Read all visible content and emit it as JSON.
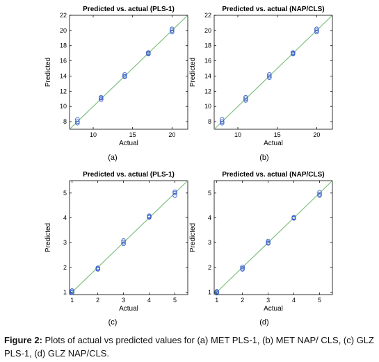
{
  "figure": {
    "caption_label": "Figure 2:",
    "caption_text": " Plots of actual vs predicted values for (a) MET PLS-1, (b) MET NAP/ CLS, (c) GLZ PLS-1, (d) GLZ NAP/CLS."
  },
  "colors": {
    "fit_line": "#7fbf7f",
    "marker": "#3a5fcd",
    "axes": "#000000"
  },
  "panels": [
    {
      "panel_label": "(a)"
    },
    {
      "panel_label": "(b)"
    },
    {
      "panel_label": "(c)"
    },
    {
      "panel_label": "(d)"
    }
  ],
  "chart_data": [
    {
      "type": "scatter",
      "title": "Predicted vs. actual (PLS-1)",
      "xlabel": "Actual",
      "ylabel": "Predicted",
      "xlim": [
        7,
        22
      ],
      "ylim": [
        7,
        22
      ],
      "xticks": [
        10,
        15,
        20
      ],
      "yticks": [
        8,
        10,
        12,
        14,
        16,
        18,
        20,
        22
      ],
      "grid": false,
      "reference_line": [
        [
          7,
          7
        ],
        [
          22,
          22
        ]
      ],
      "x": [
        8,
        8,
        8,
        11,
        11,
        11,
        14,
        14,
        14,
        17,
        17,
        17,
        20,
        20,
        20
      ],
      "y": [
        7.8,
        8.0,
        8.3,
        10.9,
        11.1,
        11.2,
        13.9,
        14.0,
        14.2,
        16.9,
        17.0,
        17.1,
        19.8,
        20.0,
        20.2
      ]
    },
    {
      "type": "scatter",
      "title": "Predicted vs. actual (NAP/CLS)",
      "xlabel": "Actual",
      "ylabel": "Predicted",
      "xlim": [
        7,
        22
      ],
      "ylim": [
        7,
        22
      ],
      "xticks": [
        10,
        15,
        20
      ],
      "yticks": [
        8,
        10,
        12,
        14,
        16,
        18,
        20,
        22
      ],
      "grid": false,
      "reference_line": [
        [
          7,
          7
        ],
        [
          22,
          22
        ]
      ],
      "x": [
        8,
        8,
        8,
        11,
        11,
        11,
        14,
        14,
        14,
        17,
        17,
        17,
        20,
        20,
        20
      ],
      "y": [
        7.8,
        8.0,
        8.3,
        10.8,
        11.0,
        11.2,
        13.8,
        14.0,
        14.2,
        16.9,
        17.0,
        17.1,
        19.8,
        20.0,
        20.2
      ]
    },
    {
      "type": "scatter",
      "title": "Predicted vs. actual (PLS-1)",
      "xlabel": "Actual",
      "ylabel": "Predicted",
      "xlim": [
        0.9,
        5.5
      ],
      "ylim": [
        0.9,
        5.5
      ],
      "xticks": [
        1,
        2,
        3,
        4,
        5
      ],
      "yticks": [
        1,
        2,
        3,
        4,
        5
      ],
      "grid": false,
      "reference_line": [
        [
          0.9,
          0.9
        ],
        [
          5.5,
          5.5
        ]
      ],
      "x": [
        1,
        1,
        1,
        2,
        2,
        2,
        3,
        3,
        3,
        4,
        4,
        4,
        5,
        5,
        5
      ],
      "y": [
        0.98,
        1.02,
        1.06,
        1.92,
        1.95,
        1.98,
        2.95,
        3.02,
        3.08,
        4.02,
        4.05,
        4.08,
        4.9,
        5.0,
        5.05
      ]
    },
    {
      "type": "scatter",
      "title": "Predicted vs. actual (NAP/CLS)",
      "xlabel": "Actual",
      "ylabel": "Predicted",
      "xlim": [
        0.9,
        5.5
      ],
      "ylim": [
        0.9,
        5.5
      ],
      "xticks": [
        1,
        2,
        3,
        4,
        5
      ],
      "yticks": [
        1,
        2,
        3,
        4,
        5
      ],
      "grid": false,
      "reference_line": [
        [
          0.9,
          0.9
        ],
        [
          5.5,
          5.5
        ]
      ],
      "x": [
        1,
        1,
        1,
        2,
        2,
        2,
        3,
        3,
        3,
        4,
        4,
        4,
        5,
        5,
        5
      ],
      "y": [
        0.96,
        1.0,
        1.03,
        1.92,
        1.96,
        2.02,
        2.97,
        3.0,
        3.06,
        3.98,
        4.0,
        4.02,
        4.9,
        4.95,
        5.03
      ]
    }
  ]
}
